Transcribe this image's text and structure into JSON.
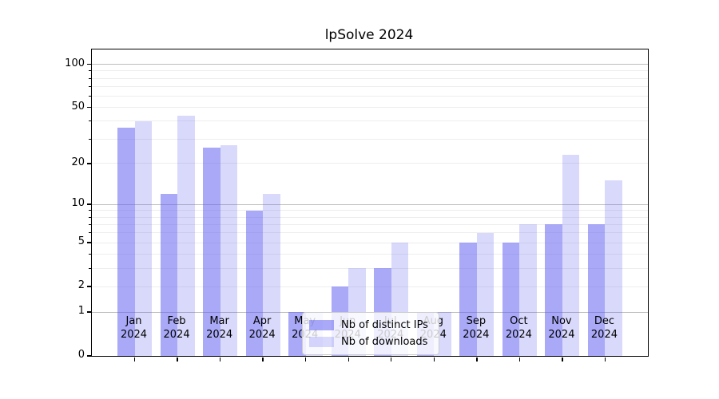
{
  "title": "lpSolve 2024",
  "chart_data": {
    "type": "bar",
    "title": "lpSolve 2024",
    "xlabel": "",
    "ylabel": "",
    "scale": "log1p",
    "grid": true,
    "legend_position": "lower-center-inside",
    "categories": [
      "Jan 2024",
      "Feb 2024",
      "Mar 2024",
      "Apr 2024",
      "May 2024",
      "Jun 2024",
      "Jul 2024",
      "Aug 2024",
      "Sep 2024",
      "Oct 2024",
      "Nov 2024",
      "Dec 2024"
    ],
    "month_labels": [
      "Jan",
      "Feb",
      "Mar",
      "Apr",
      "May",
      "Jun",
      "Jul",
      "Aug",
      "Sep",
      "Oct",
      "Nov",
      "Dec"
    ],
    "year_label": "2024",
    "series": [
      {
        "name": "Nb of distinct IPs",
        "values": [
          36,
          12,
          26,
          9,
          1,
          2,
          3,
          1,
          5,
          5,
          7,
          7
        ]
      },
      {
        "name": "Nb of downloads",
        "values": [
          40,
          44,
          27,
          12,
          1,
          3,
          5,
          1,
          6,
          7,
          23,
          15
        ]
      }
    ],
    "y_ticks_major": [
      0,
      1,
      2,
      5,
      10,
      20,
      50,
      100
    ],
    "y_ticks_minor": [
      3,
      4,
      6,
      7,
      8,
      9,
      30,
      40,
      60,
      70,
      80,
      90
    ],
    "y_decade_lines": [
      1,
      10,
      100
    ],
    "ylim": [
      0,
      126.7
    ]
  },
  "colors": {
    "bar_distinct_ips": "rgba(92,92,242,0.53)",
    "bar_downloads": "rgba(92,92,242,0.235)",
    "grid_decade": "#bdbdbd",
    "grid_minor": "#ededed",
    "axis": "#000000"
  }
}
